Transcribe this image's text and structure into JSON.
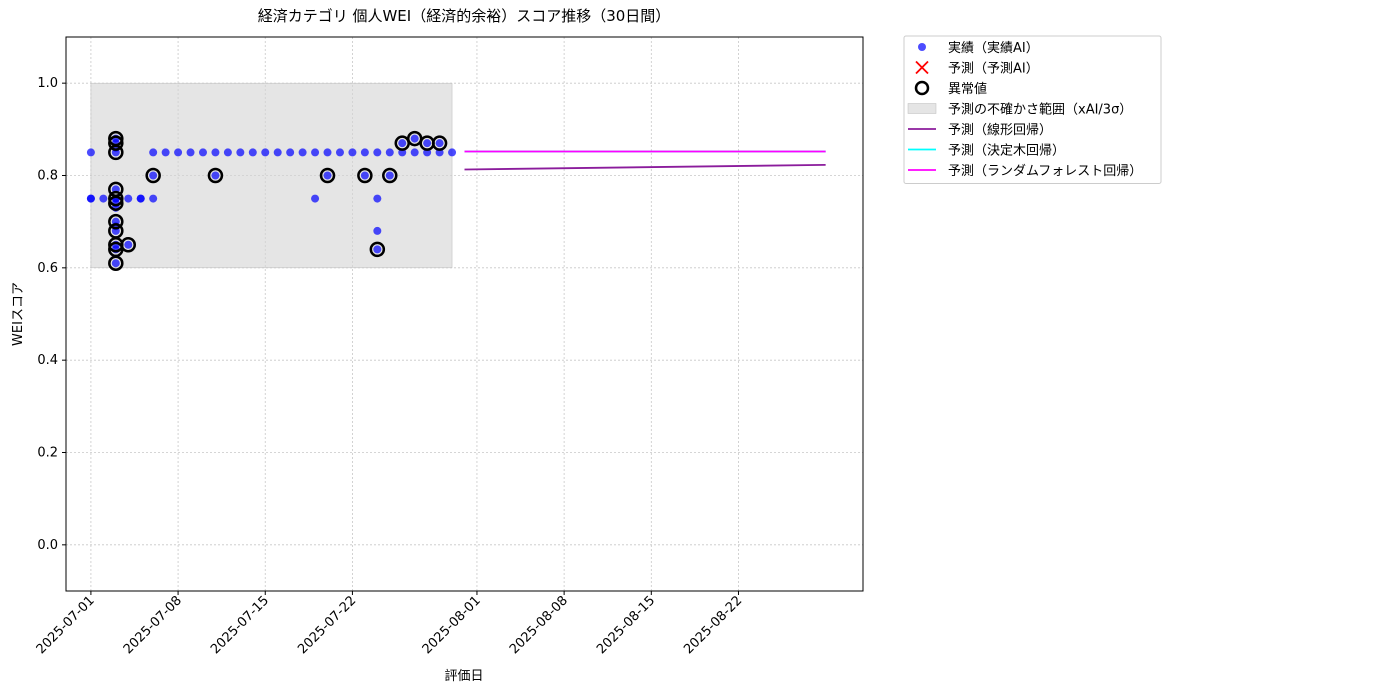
{
  "chart_data": {
    "type": "scatter",
    "title": "経済カテゴリ 個人WEI（経済的余裕）スコア推移（30日間）",
    "xlabel": "評価日",
    "ylabel": "WEIスコア",
    "xlim": [
      "2025-06-29",
      "2025-09-01"
    ],
    "ylim": [
      -0.1,
      1.1
    ],
    "xticks": [
      "2025-07-01",
      "2025-07-08",
      "2025-07-15",
      "2025-07-22",
      "2025-08-01",
      "2025-08-08",
      "2025-08-15",
      "2025-08-22"
    ],
    "yticks": [
      {
        "value": 0,
        "label": "0.0"
      },
      {
        "value": 0.2,
        "label": "0.2"
      },
      {
        "value": 0.4,
        "label": "0.4"
      },
      {
        "value": 0.6,
        "label": "0.6"
      },
      {
        "value": 0.8,
        "label": "0.8"
      },
      {
        "value": 1,
        "label": "1.0"
      }
    ],
    "grid": true,
    "legend": "outside upper right",
    "series": [
      {
        "name": "実績（実績AI）",
        "type": "scatter",
        "color": "#0000ff",
        "x": [
          "2025-07-01",
          "2025-07-01",
          "2025-07-01",
          "2025-07-02",
          "2025-07-03",
          "2025-07-03",
          "2025-07-03",
          "2025-07-03",
          "2025-07-03",
          "2025-07-03",
          "2025-07-03",
          "2025-07-03",
          "2025-07-03",
          "2025-07-03",
          "2025-07-03",
          "2025-07-03",
          "2025-07-03",
          "2025-07-03",
          "2025-07-03",
          "2025-07-04",
          "2025-07-04",
          "2025-07-05",
          "2025-07-05",
          "2025-07-06",
          "2025-07-06",
          "2025-07-06",
          "2025-07-07",
          "2025-07-08",
          "2025-07-09",
          "2025-07-10",
          "2025-07-11",
          "2025-07-12",
          "2025-07-13",
          "2025-07-14",
          "2025-07-15",
          "2025-07-16",
          "2025-07-17",
          "2025-07-18",
          "2025-07-19",
          "2025-07-20",
          "2025-07-21",
          "2025-07-22",
          "2025-07-23",
          "2025-07-24",
          "2025-07-25",
          "2025-07-26",
          "2025-07-27",
          "2025-07-28",
          "2025-07-29",
          "2025-07-30",
          "2025-07-11",
          "2025-07-19",
          "2025-07-20",
          "2025-07-23",
          "2025-07-24",
          "2025-07-24",
          "2025-07-24",
          "2025-07-25",
          "2025-07-26",
          "2025-07-27",
          "2025-07-28",
          "2025-07-29"
        ],
        "values": [
          0.85,
          0.75,
          0.75,
          0.75,
          0.75,
          0.75,
          0.65,
          0.61,
          0.64,
          0.68,
          0.69,
          0.7,
          0.73,
          0.74,
          0.77,
          0.85,
          0.86,
          0.87,
          0.88,
          0.75,
          0.65,
          0.75,
          0.75,
          0.75,
          0.8,
          0.85,
          0.85,
          0.85,
          0.85,
          0.85,
          0.85,
          0.85,
          0.85,
          0.85,
          0.85,
          0.85,
          0.85,
          0.85,
          0.85,
          0.85,
          0.85,
          0.85,
          0.85,
          0.85,
          0.85,
          0.85,
          0.85,
          0.85,
          0.85,
          0.85,
          0.8,
          0.75,
          0.8,
          0.8,
          0.75,
          0.68,
          0.64,
          0.8,
          0.87,
          0.88,
          0.87,
          0.87
        ]
      },
      {
        "name": "予測（予測AI）",
        "type": "cross",
        "color": "#ff0000",
        "x": [],
        "values": []
      },
      {
        "name": "異常値",
        "type": "ring",
        "color": "#000000",
        "x": [
          "2025-07-03",
          "2025-07-03",
          "2025-07-03",
          "2025-07-03",
          "2025-07-03",
          "2025-07-03",
          "2025-07-03",
          "2025-07-03",
          "2025-07-03",
          "2025-07-03",
          "2025-07-03",
          "2025-07-04",
          "2025-07-06",
          "2025-07-11",
          "2025-07-20",
          "2025-07-23",
          "2025-07-24",
          "2025-07-25",
          "2025-07-26",
          "2025-07-27",
          "2025-07-28",
          "2025-07-29"
        ],
        "values": [
          0.88,
          0.87,
          0.85,
          0.77,
          0.75,
          0.74,
          0.7,
          0.68,
          0.65,
          0.64,
          0.61,
          0.65,
          0.8,
          0.8,
          0.8,
          0.8,
          0.64,
          0.8,
          0.87,
          0.88,
          0.87,
          0.87
        ]
      },
      {
        "name": "予測の不確かさ範囲（xAI/3σ）",
        "type": "band",
        "color": "#d3d3d3",
        "x": [
          "2025-07-01",
          "2025-07-30"
        ],
        "lower": [
          0.6,
          0.6
        ],
        "upper": [
          1.0,
          1.0
        ]
      },
      {
        "name": "予測（線形回帰）",
        "type": "line",
        "color": "#8b1c9c",
        "x": [
          "2025-07-31",
          "2025-08-29"
        ],
        "values": [
          0.813,
          0.823
        ]
      },
      {
        "name": "予測（決定木回帰）",
        "type": "line",
        "color": "#00ffff",
        "x": [
          "2025-07-31",
          "2025-08-29"
        ],
        "values": [
          0.852,
          0.852
        ]
      },
      {
        "name": "予測（ランダムフォレスト回帰）",
        "type": "line",
        "color": "#ff00ff",
        "x": [
          "2025-07-31",
          "2025-08-29"
        ],
        "values": [
          0.852,
          0.852
        ]
      }
    ]
  }
}
